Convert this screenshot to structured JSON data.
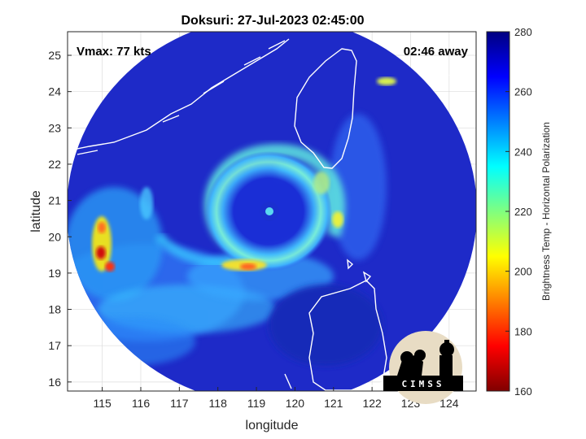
{
  "chart_data": {
    "type": "heatmap",
    "title": "Doksuri: 27-Jul-2023 02:45:00",
    "xlabel": "longitude",
    "ylabel": "latitude",
    "xlim": [
      114.1,
      124.7
    ],
    "ylim": [
      15.75,
      25.65
    ],
    "xticks": [
      115,
      116,
      117,
      118,
      119,
      120,
      121,
      122,
      123,
      124
    ],
    "yticks": [
      16,
      17,
      18,
      19,
      20,
      21,
      22,
      23,
      24,
      25
    ],
    "grid": true,
    "annotations": {
      "vmax": "Vmax: 77 kts",
      "away": "02:46 away"
    },
    "center": {
      "lon": 119.1,
      "lat": 20.5
    },
    "colorbar": {
      "label": "Brightness Temp - Horizontal Polarization",
      "min": 160,
      "max": 280,
      "ticks": [
        160,
        180,
        200,
        220,
        240,
        260,
        280
      ],
      "colormap": "jet"
    },
    "logo": "CIMSS"
  },
  "colors": {
    "background": "#ffffff",
    "cold_field": "#1e28c8",
    "coast": "#ffffff",
    "grid": "#dcdcdc"
  }
}
